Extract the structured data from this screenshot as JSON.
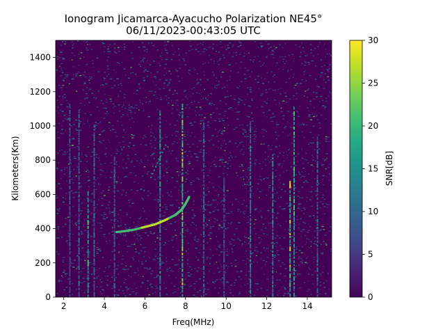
{
  "chart_data": {
    "type": "heatmap",
    "title_line1": "Ionogram Jicamarca-Ayacucho Polarization NE45°",
    "title_line2": "06/11/2023-00:43:05 UTC",
    "xlabel": "Freq(MHz)",
    "ylabel": "Kilometers(Km)",
    "xlim": [
      1.6,
      15.2
    ],
    "ylim": [
      0,
      1500
    ],
    "xticks": [
      2,
      4,
      6,
      8,
      10,
      12,
      14
    ],
    "yticks": [
      0,
      200,
      400,
      600,
      800,
      1000,
      1200,
      1400
    ],
    "colorbar": {
      "label": "SNR[dB]",
      "range": [
        0,
        30
      ],
      "ticks": [
        0,
        5,
        10,
        15,
        20,
        25,
        30
      ],
      "colormap": "viridis"
    },
    "background_color": "#440154",
    "trace": {
      "description_points_freq_mhz": [
        4.6,
        5.0,
        5.5,
        6.0,
        6.5,
        7.0,
        7.5,
        7.8,
        8.0,
        8.2
      ],
      "description_points_km": [
        380,
        385,
        395,
        410,
        425,
        450,
        480,
        510,
        545,
        590
      ]
    },
    "vertical_lines": [
      {
        "freq": 2.3,
        "top": 1120,
        "snr": 10
      },
      {
        "freq": 2.75,
        "top": 1080,
        "snr": 12
      },
      {
        "freq": 3.2,
        "top": 620,
        "snr": 22
      },
      {
        "freq": 3.5,
        "top": 1000,
        "snr": 12
      },
      {
        "freq": 4.5,
        "top": 830,
        "snr": 11
      },
      {
        "freq": 6.75,
        "top": 1100,
        "snr": 18
      },
      {
        "freq": 7.85,
        "top": 1120,
        "snr": 28
      },
      {
        "freq": 8.9,
        "top": 1000,
        "snr": 12
      },
      {
        "freq": 9.9,
        "top": 700,
        "snr": 10
      },
      {
        "freq": 11.2,
        "top": 1020,
        "snr": 16
      },
      {
        "freq": 12.3,
        "top": 840,
        "snr": 16
      },
      {
        "freq": 13.15,
        "top": 680,
        "snr": 30
      },
      {
        "freq": 13.35,
        "top": 1100,
        "snr": 22
      },
      {
        "freq": 14.5,
        "top": 920,
        "snr": 14
      }
    ]
  }
}
